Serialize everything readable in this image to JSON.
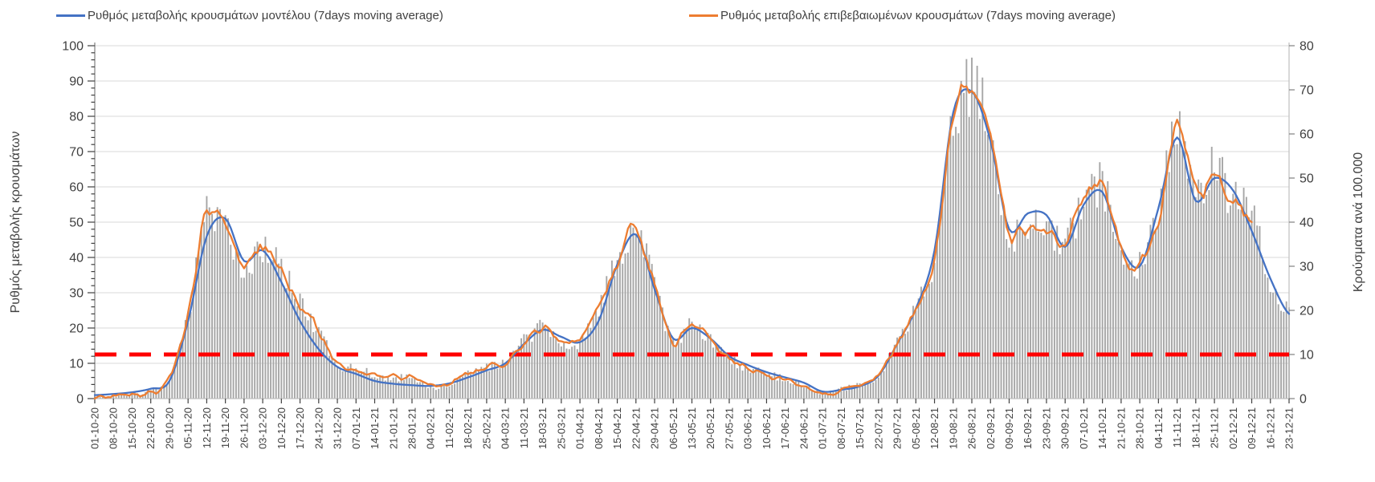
{
  "chart_data": {
    "type": "line+bar",
    "title": "",
    "legend_position": "top",
    "grid": "horizontal",
    "background": "#FFFFFF",
    "grid_color": "#D9D9D9",
    "x_tick_labels": [
      "01-10-20",
      "08-10-20",
      "15-10-20",
      "22-10-20",
      "29-10-20",
      "05-11-20",
      "12-11-20",
      "19-11-20",
      "26-11-20",
      "03-12-20",
      "10-12-20",
      "17-12-20",
      "24-12-20",
      "31-12-20",
      "07-01-21",
      "14-01-21",
      "21-01-21",
      "28-01-21",
      "04-02-21",
      "11-02-21",
      "18-02-21",
      "25-02-21",
      "04-03-21",
      "11-03-21",
      "18-03-21",
      "25-03-21",
      "01-04-21",
      "08-04-21",
      "15-04-21",
      "22-04-21",
      "29-04-21",
      "06-05-21",
      "13-05-21",
      "20-05-21",
      "27-05-21",
      "03-06-21",
      "10-06-21",
      "17-06-21",
      "24-06-21",
      "01-07-21",
      "08-07-21",
      "15-07-21",
      "22-07-21",
      "29-07-21",
      "05-08-21",
      "12-08-21",
      "19-08-21",
      "26-08-21",
      "02-09-21",
      "09-09-21",
      "16-09-21",
      "23-09-21",
      "30-09-21",
      "07-10-21",
      "14-10-21",
      "21-10-21",
      "28-10-21",
      "04-11-21",
      "11-11-21",
      "18-11-21",
      "25-11-21",
      "02-12-21",
      "09-12-21",
      "16-12-21",
      "23-12-21"
    ],
    "x_tick_interval_days": 7,
    "left_axis": {
      "title": "Ρυθμός μεταβολής κρουσμάτων",
      "min": 0,
      "max": 100,
      "tick_step": 10,
      "minor_step": 2
    },
    "right_axis": {
      "title": "Κρούσματα ανά 100.000",
      "min": 0,
      "max": 80,
      "tick_step": 10
    },
    "threshold_line": {
      "axis": "right",
      "value": 10,
      "color": "#FF0000",
      "style": "dashed",
      "width": 5
    },
    "series": [
      {
        "name": "Ρυθμός μεταβολής κρουσμάτων μοντέλου (7days moving average)",
        "type": "line",
        "axis": "left",
        "color": "#4472C4",
        "smooth": true,
        "weekly_values": [
          1,
          1.3,
          1.8,
          2.8,
          5,
          22,
          46,
          51,
          39,
          42,
          33,
          22,
          14,
          9,
          7,
          5,
          4.2,
          3.8,
          3.6,
          4.3,
          6,
          8,
          10,
          15.5,
          19.5,
          17.5,
          16,
          22,
          38,
          46.5,
          31,
          17,
          20,
          17,
          12,
          9.5,
          7.5,
          6,
          4.5,
          2,
          2.5,
          3.5,
          6.5,
          15.5,
          25.5,
          42,
          81,
          87,
          73,
          48,
          52.5,
          52,
          43,
          55,
          58.5,
          43,
          37.5,
          54,
          74,
          56,
          62.5,
          59,
          47.5,
          34,
          24
        ]
      },
      {
        "name": "Ρυθμός μεταβολής επιβεβαιωμένων κρουσμάτων (7days moving average)",
        "type": "line",
        "axis": "left",
        "color": "#ED7D31",
        "smooth": false,
        "jitter": true,
        "last_date": "09-12-21",
        "weekly_values": [
          0.4,
          0.8,
          1.2,
          2,
          5.5,
          24,
          53,
          47,
          38,
          43,
          36,
          27,
          19,
          10,
          8.5,
          7,
          5.8,
          6,
          3.5,
          3.8,
          7,
          9,
          10,
          16,
          20,
          16.5,
          16,
          26,
          38.5,
          48,
          32,
          16,
          21.5,
          16.5,
          11,
          8.5,
          7,
          5.5,
          4,
          1.5,
          2.8,
          4,
          7,
          16,
          26,
          40.5,
          78,
          89,
          75,
          47,
          50,
          49,
          44,
          56,
          60,
          42,
          38,
          52,
          77,
          57,
          64.5,
          56,
          51
        ]
      },
      {
        "name": "Κρούσματα ανά 100.000",
        "type": "bar",
        "axis": "right",
        "color": "#A6A6A6",
        "weekly_values": [
          0.3,
          0.6,
          1,
          1.6,
          4.4,
          19,
          42,
          38,
          30,
          34,
          29,
          22,
          15,
          8,
          7,
          5.6,
          4.6,
          4.8,
          2.8,
          3,
          5.6,
          7.2,
          8,
          13,
          16,
          13,
          13,
          21,
          31,
          38,
          26,
          13,
          17,
          13,
          9,
          7,
          5.6,
          4.4,
          3.2,
          1.2,
          2.2,
          3.2,
          5.6,
          13,
          21,
          32,
          62,
          71,
          60,
          38,
          40,
          39,
          35,
          45,
          48,
          34,
          30,
          42,
          62,
          46,
          52,
          45,
          41,
          27,
          19
        ]
      }
    ]
  }
}
